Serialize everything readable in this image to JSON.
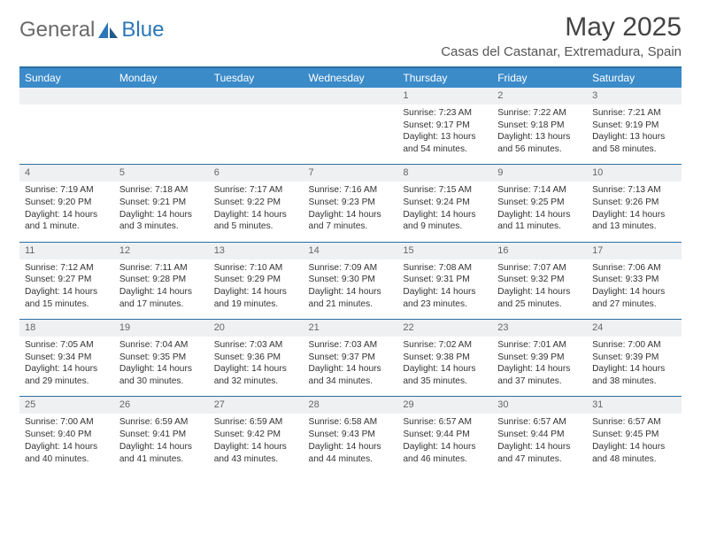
{
  "logo": {
    "part1": "General",
    "part2": "Blue"
  },
  "title": "May 2025",
  "location": "Casas del Castanar, Extremadura, Spain",
  "colors": {
    "header_bg": "#3b8bc9",
    "header_border": "#2b6ea3",
    "daynum_bg": "#eef0f2",
    "text": "#333333",
    "logo_gray": "#6a6a6a",
    "logo_blue": "#2b77b8"
  },
  "day_headers": [
    "Sunday",
    "Monday",
    "Tuesday",
    "Wednesday",
    "Thursday",
    "Friday",
    "Saturday"
  ],
  "weeks": [
    {
      "nums": [
        "",
        "",
        "",
        "",
        "1",
        "2",
        "3"
      ],
      "cells": [
        null,
        null,
        null,
        null,
        {
          "sunrise": "7:23 AM",
          "sunset": "9:17 PM",
          "daylight": "13 hours and 54 minutes."
        },
        {
          "sunrise": "7:22 AM",
          "sunset": "9:18 PM",
          "daylight": "13 hours and 56 minutes."
        },
        {
          "sunrise": "7:21 AM",
          "sunset": "9:19 PM",
          "daylight": "13 hours and 58 minutes."
        }
      ]
    },
    {
      "nums": [
        "4",
        "5",
        "6",
        "7",
        "8",
        "9",
        "10"
      ],
      "cells": [
        {
          "sunrise": "7:19 AM",
          "sunset": "9:20 PM",
          "daylight": "14 hours and 1 minute."
        },
        {
          "sunrise": "7:18 AM",
          "sunset": "9:21 PM",
          "daylight": "14 hours and 3 minutes."
        },
        {
          "sunrise": "7:17 AM",
          "sunset": "9:22 PM",
          "daylight": "14 hours and 5 minutes."
        },
        {
          "sunrise": "7:16 AM",
          "sunset": "9:23 PM",
          "daylight": "14 hours and 7 minutes."
        },
        {
          "sunrise": "7:15 AM",
          "sunset": "9:24 PM",
          "daylight": "14 hours and 9 minutes."
        },
        {
          "sunrise": "7:14 AM",
          "sunset": "9:25 PM",
          "daylight": "14 hours and 11 minutes."
        },
        {
          "sunrise": "7:13 AM",
          "sunset": "9:26 PM",
          "daylight": "14 hours and 13 minutes."
        }
      ]
    },
    {
      "nums": [
        "11",
        "12",
        "13",
        "14",
        "15",
        "16",
        "17"
      ],
      "cells": [
        {
          "sunrise": "7:12 AM",
          "sunset": "9:27 PM",
          "daylight": "14 hours and 15 minutes."
        },
        {
          "sunrise": "7:11 AM",
          "sunset": "9:28 PM",
          "daylight": "14 hours and 17 minutes."
        },
        {
          "sunrise": "7:10 AM",
          "sunset": "9:29 PM",
          "daylight": "14 hours and 19 minutes."
        },
        {
          "sunrise": "7:09 AM",
          "sunset": "9:30 PM",
          "daylight": "14 hours and 21 minutes."
        },
        {
          "sunrise": "7:08 AM",
          "sunset": "9:31 PM",
          "daylight": "14 hours and 23 minutes."
        },
        {
          "sunrise": "7:07 AM",
          "sunset": "9:32 PM",
          "daylight": "14 hours and 25 minutes."
        },
        {
          "sunrise": "7:06 AM",
          "sunset": "9:33 PM",
          "daylight": "14 hours and 27 minutes."
        }
      ]
    },
    {
      "nums": [
        "18",
        "19",
        "20",
        "21",
        "22",
        "23",
        "24"
      ],
      "cells": [
        {
          "sunrise": "7:05 AM",
          "sunset": "9:34 PM",
          "daylight": "14 hours and 29 minutes."
        },
        {
          "sunrise": "7:04 AM",
          "sunset": "9:35 PM",
          "daylight": "14 hours and 30 minutes."
        },
        {
          "sunrise": "7:03 AM",
          "sunset": "9:36 PM",
          "daylight": "14 hours and 32 minutes."
        },
        {
          "sunrise": "7:03 AM",
          "sunset": "9:37 PM",
          "daylight": "14 hours and 34 minutes."
        },
        {
          "sunrise": "7:02 AM",
          "sunset": "9:38 PM",
          "daylight": "14 hours and 35 minutes."
        },
        {
          "sunrise": "7:01 AM",
          "sunset": "9:39 PM",
          "daylight": "14 hours and 37 minutes."
        },
        {
          "sunrise": "7:00 AM",
          "sunset": "9:39 PM",
          "daylight": "14 hours and 38 minutes."
        }
      ]
    },
    {
      "nums": [
        "25",
        "26",
        "27",
        "28",
        "29",
        "30",
        "31"
      ],
      "cells": [
        {
          "sunrise": "7:00 AM",
          "sunset": "9:40 PM",
          "daylight": "14 hours and 40 minutes."
        },
        {
          "sunrise": "6:59 AM",
          "sunset": "9:41 PM",
          "daylight": "14 hours and 41 minutes."
        },
        {
          "sunrise": "6:59 AM",
          "sunset": "9:42 PM",
          "daylight": "14 hours and 43 minutes."
        },
        {
          "sunrise": "6:58 AM",
          "sunset": "9:43 PM",
          "daylight": "14 hours and 44 minutes."
        },
        {
          "sunrise": "6:57 AM",
          "sunset": "9:44 PM",
          "daylight": "14 hours and 46 minutes."
        },
        {
          "sunrise": "6:57 AM",
          "sunset": "9:44 PM",
          "daylight": "14 hours and 47 minutes."
        },
        {
          "sunrise": "6:57 AM",
          "sunset": "9:45 PM",
          "daylight": "14 hours and 48 minutes."
        }
      ]
    }
  ],
  "labels": {
    "sunrise": "Sunrise: ",
    "sunset": "Sunset: ",
    "daylight": "Daylight: "
  }
}
